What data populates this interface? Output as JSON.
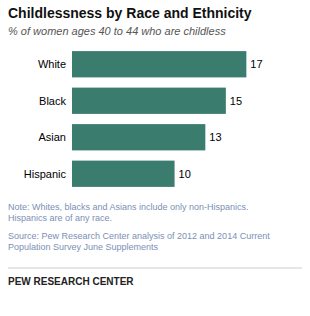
{
  "chart_data": {
    "type": "bar",
    "orientation": "horizontal",
    "title": "Childlessness by Race and Ethnicity",
    "subtitle": "% of women ages 40 to 44 who are childless",
    "categories": [
      "White",
      "Black",
      "Asian",
      "Hispanic"
    ],
    "values": [
      17,
      15,
      13,
      10
    ],
    "color": "#3a7d6e",
    "xlim": [
      0,
      19.5
    ],
    "data_labels": true,
    "tick_labels": "y",
    "grid": false,
    "annotations": [
      "Note: Whites, blacks and Asians include only non-Hispanics.\nHispanics are of any race.",
      "Source: Pew Research Center analysis of 2012 and 2014 Current\nPopulation Survey June Supplements",
      "PEW RESEARCH CENTER"
    ]
  }
}
